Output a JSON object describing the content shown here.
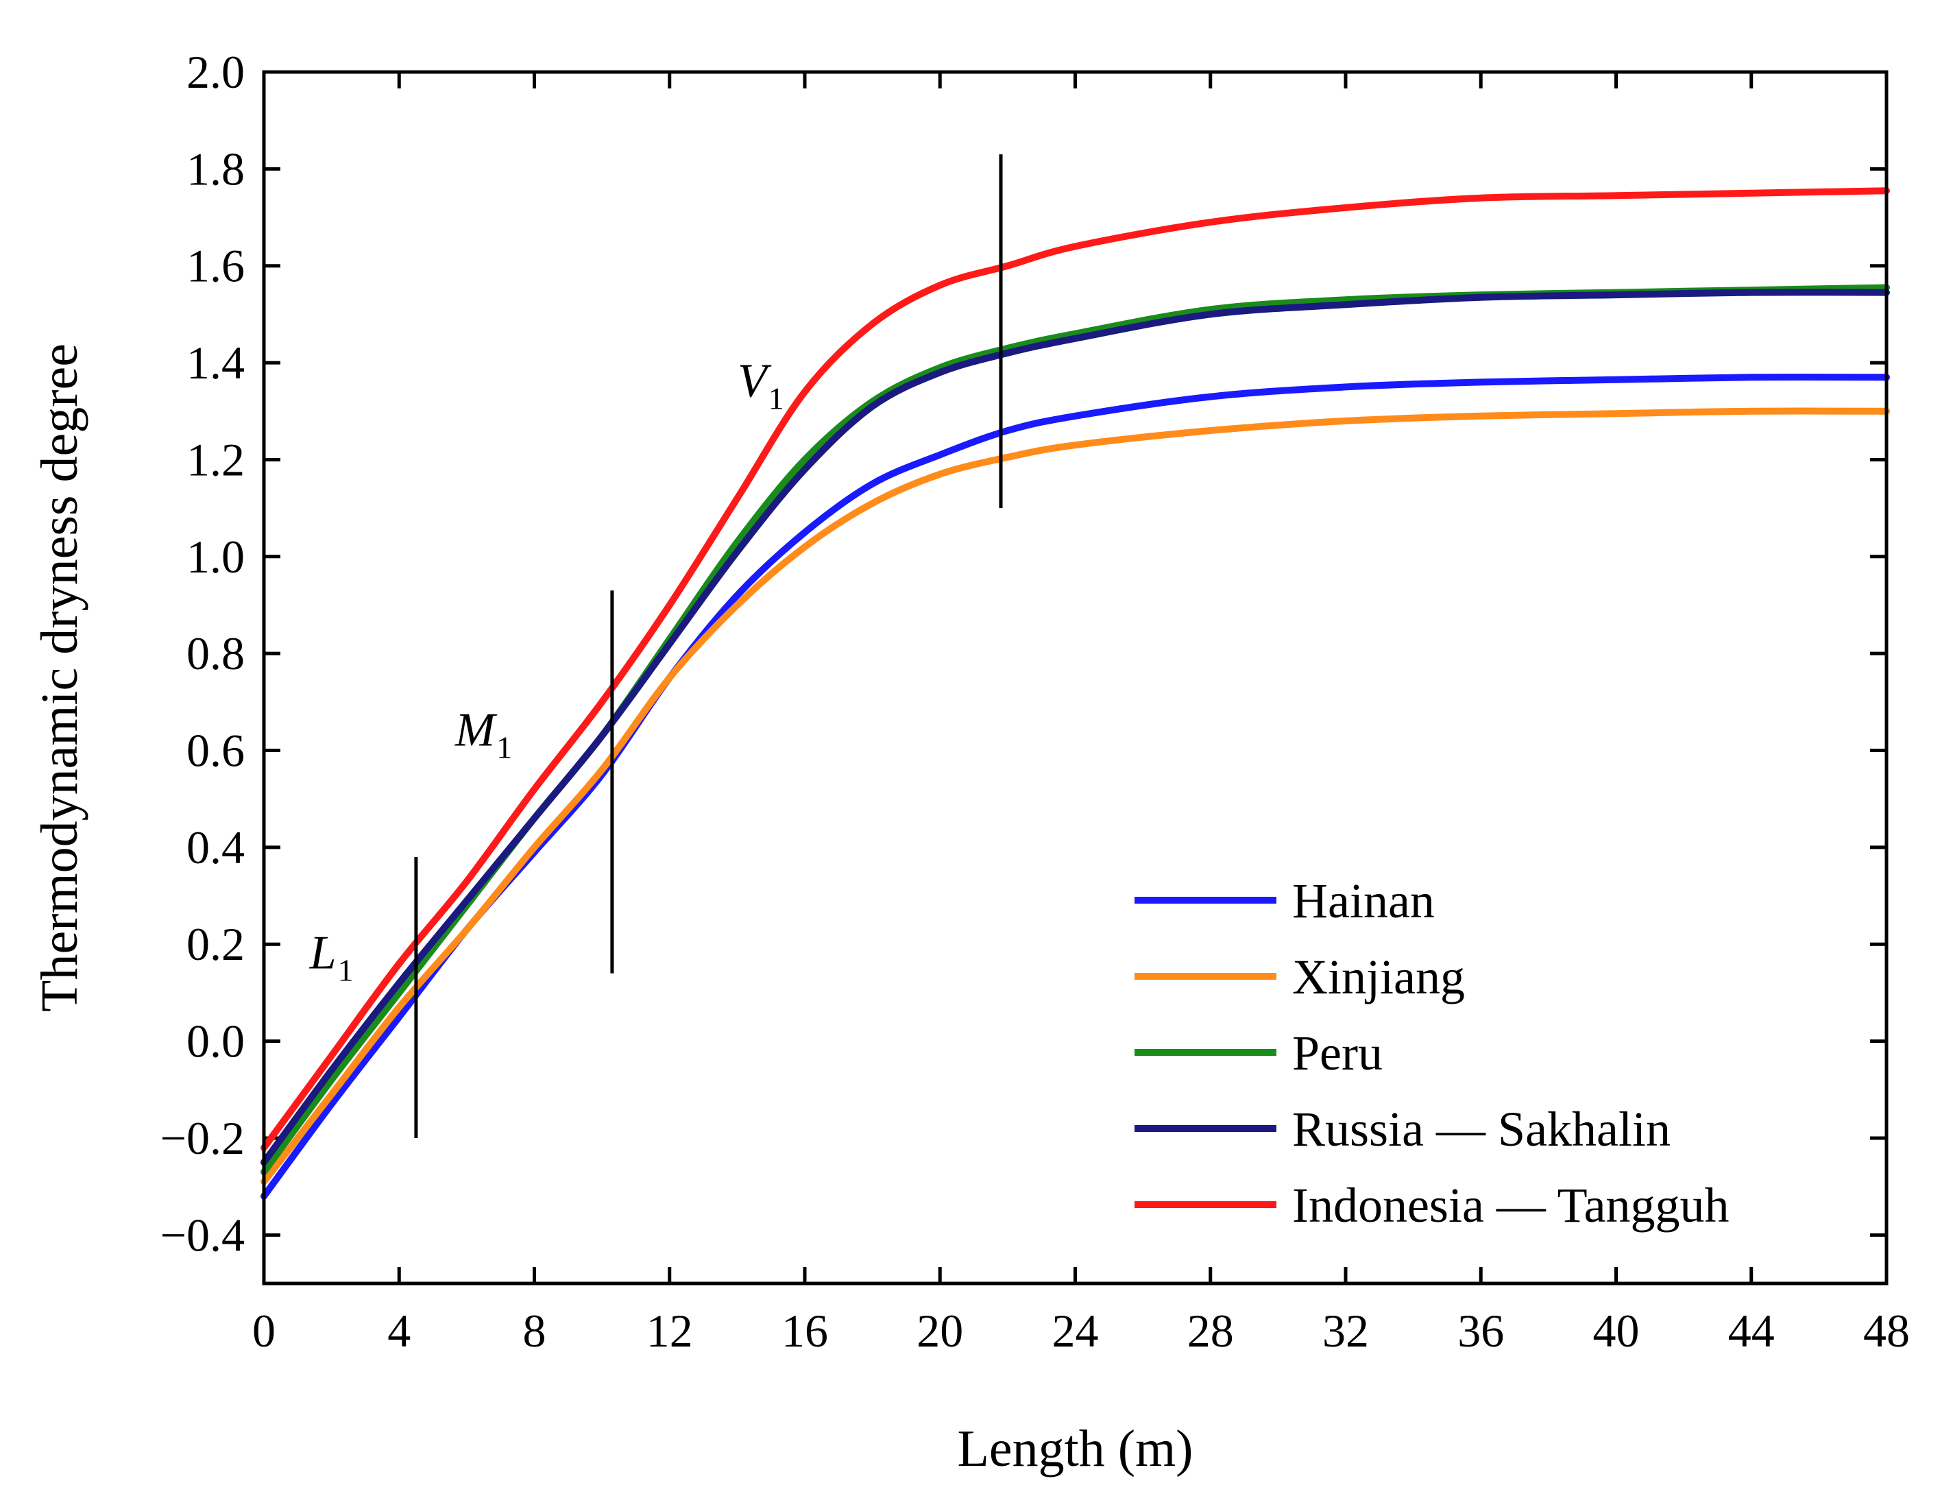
{
  "chart_data": {
    "type": "line",
    "title": "",
    "xlabel": "Length (m)",
    "ylabel": "Thermodynamic dryness degree",
    "xlim": [
      0,
      48
    ],
    "ylim": [
      -0.5,
      2.0
    ],
    "xticks": [
      0,
      4,
      8,
      12,
      16,
      20,
      24,
      28,
      32,
      36,
      40,
      44,
      48
    ],
    "xtick_labels": [
      "0",
      "4",
      "8",
      "12",
      "16",
      "20",
      "24",
      "28",
      "32",
      "36",
      "40",
      "44",
      "48"
    ],
    "yticks": [
      -0.4,
      -0.2,
      0.0,
      0.2,
      0.4,
      0.6,
      0.8,
      1.0,
      1.2,
      1.4,
      1.6,
      1.8,
      2.0
    ],
    "ytick_labels": [
      "−0.4",
      "−0.2",
      "0.0",
      "0.2",
      "0.4",
      "0.6",
      "0.8",
      "1.0",
      "1.2",
      "1.4",
      "1.6",
      "1.8",
      "2.0"
    ],
    "x": [
      0,
      2,
      4,
      6,
      8,
      10,
      12,
      14,
      16,
      18,
      20,
      22,
      24,
      28,
      32,
      36,
      40,
      44,
      48
    ],
    "series": [
      {
        "name": "Hainan",
        "color": "#1a1aff",
        "values": [
          -0.32,
          -0.13,
          0.05,
          0.23,
          0.39,
          0.55,
          0.75,
          0.92,
          1.05,
          1.15,
          1.21,
          1.26,
          1.29,
          1.33,
          1.35,
          1.36,
          1.365,
          1.37,
          1.37
        ]
      },
      {
        "name": "Xinjiang",
        "color": "#ff8c1a",
        "values": [
          -0.29,
          -0.11,
          0.07,
          0.23,
          0.4,
          0.56,
          0.75,
          0.9,
          1.02,
          1.11,
          1.17,
          1.205,
          1.23,
          1.26,
          1.28,
          1.29,
          1.295,
          1.3,
          1.3
        ]
      },
      {
        "name": "Peru",
        "color": "#1a8c1a",
        "values": [
          -0.27,
          -0.08,
          0.1,
          0.28,
          0.46,
          0.63,
          0.83,
          1.03,
          1.2,
          1.32,
          1.39,
          1.43,
          1.46,
          1.51,
          1.53,
          1.54,
          1.545,
          1.55,
          1.555
        ]
      },
      {
        "name": "Russia — Sakhalin",
        "color": "#1a1a80",
        "values": [
          -0.25,
          -0.06,
          0.12,
          0.29,
          0.46,
          0.63,
          0.82,
          1.01,
          1.18,
          1.31,
          1.38,
          1.42,
          1.45,
          1.5,
          1.52,
          1.535,
          1.54,
          1.545,
          1.545
        ]
      },
      {
        "name": "Indonesia — Tangguh",
        "color": "#ff1a1a",
        "values": [
          -0.22,
          -0.03,
          0.16,
          0.33,
          0.52,
          0.7,
          0.9,
          1.12,
          1.34,
          1.48,
          1.56,
          1.6,
          1.64,
          1.69,
          1.72,
          1.74,
          1.745,
          1.75,
          1.755
        ]
      }
    ],
    "vertical_markers": [
      {
        "x": 4.5,
        "y_range": [
          -0.2,
          0.38
        ]
      },
      {
        "x": 10.3,
        "y_range": [
          0.14,
          0.93
        ]
      },
      {
        "x": 21.8,
        "y_range": [
          1.1,
          1.83
        ]
      }
    ],
    "annotations": [
      {
        "text": "L",
        "sub": "1",
        "x": 2.0,
        "y": 0.15
      },
      {
        "text": "M",
        "sub": "1",
        "x": 6.5,
        "y": 0.61
      },
      {
        "text": "V",
        "sub": "1",
        "x": 14.7,
        "y": 1.33
      }
    ],
    "legend_position": "bottom-right"
  }
}
